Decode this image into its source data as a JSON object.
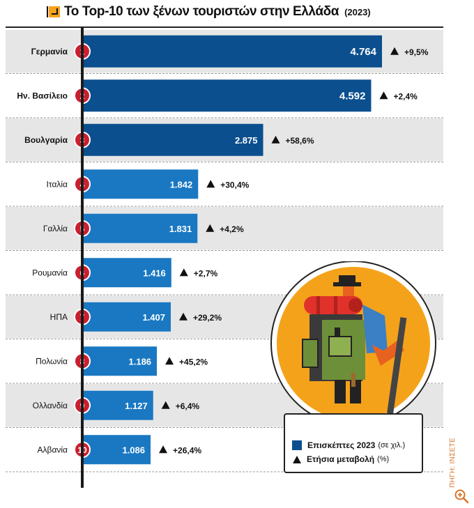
{
  "title": {
    "text": "Το Top-10 των ξένων τουριστών στην Ελλάδα",
    "year": "(2023)"
  },
  "chart_data": {
    "type": "bar",
    "orientation": "horizontal",
    "title": "Το Top-10 των ξένων τουριστών στην Ελλάδα (2023)",
    "categories": [
      "Γερμανία",
      "Ην. Βασίλειο",
      "Βουλγαρία",
      "Ιταλία",
      "Γαλλία",
      "Ρουμανία",
      "ΗΠΑ",
      "Πολωνία",
      "Ολλανδία",
      "Αλβανία"
    ],
    "ranks": [
      "1",
      "2",
      "3",
      "4",
      "5",
      "6",
      "7",
      "8",
      "9",
      "10"
    ],
    "series": [
      {
        "name": "Επισκέπτες 2023 (σε χιλ.)",
        "values": [
          4764,
          4592,
          2875,
          1842,
          1831,
          1416,
          1407,
          1186,
          1127,
          1086
        ]
      }
    ],
    "value_labels": [
      "4.764",
      "4.592",
      "2.875",
      "1.842",
      "1.831",
      "1.416",
      "1.407",
      "1.186",
      "1.127",
      "1.086"
    ],
    "change_labels": [
      "+9,5%",
      "+2,4%",
      "+58,6%",
      "+30,4%",
      "+4,2%",
      "+2,7%",
      "+29,2%",
      "+45,2%",
      "+6,4%",
      "+26,4%"
    ],
    "change_values": [
      9.5,
      2.4,
      58.6,
      30.4,
      4.2,
      2.7,
      29.2,
      45.2,
      6.4,
      26.4
    ],
    "top3_bold": true,
    "colors": {
      "top3": "#0b4f8e",
      "rest": "#1a78c2",
      "rank_badge": "#c8202f",
      "row_shade": "#e6e6e6"
    },
    "legend_position": "bottom-right"
  },
  "legend": {
    "visitors_main": "Επισκέπτες 2023",
    "visitors_sub": "(σε χιλ.)",
    "change_main": "Ετήσια μεταβολή",
    "change_sub": "(%)"
  },
  "source": "ΠΗΓΗ: ΙΝΣΕΤΕ",
  "icons": {
    "illustration": "backpacker-illustration-icon",
    "zoom": "zoom-in-icon",
    "title": "arrow-icon"
  }
}
